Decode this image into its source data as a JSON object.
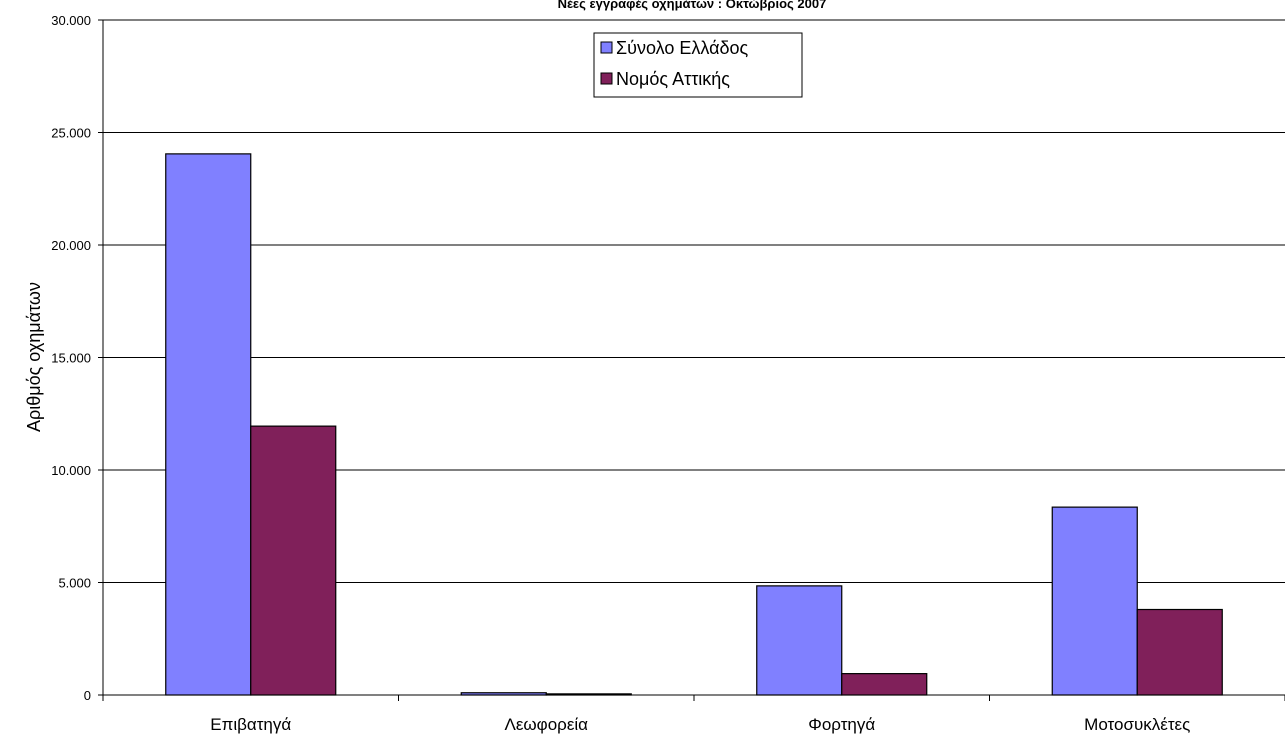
{
  "chart_data": {
    "type": "bar",
    "title": "Νέες εγγραφές οχημάτων : Οκτώβριος 2007",
    "xlabel": "",
    "ylabel": "Αριθμός οχημάτων",
    "categories": [
      "Επιβατηγά",
      "Λεωφορεία",
      "Φορτηγά",
      "Μοτοσυκλέτες"
    ],
    "series": [
      {
        "name": "Σύνολο Ελλάδος",
        "color": "#8080ff",
        "values": [
          24050,
          100,
          4850,
          8350
        ]
      },
      {
        "name": "Νομός Αττικής",
        "color": "#80205a",
        "values": [
          11950,
          50,
          950,
          3800
        ]
      }
    ],
    "ylim": [
      0,
      30000
    ],
    "yticks": [
      0,
      5000,
      10000,
      15000,
      20000,
      25000,
      30000
    ],
    "ytick_labels": [
      "0",
      "5.000",
      "10.000",
      "15.000",
      "20.000",
      "25.000",
      "30.000"
    ],
    "grid": true,
    "legend_position": "top-center"
  }
}
